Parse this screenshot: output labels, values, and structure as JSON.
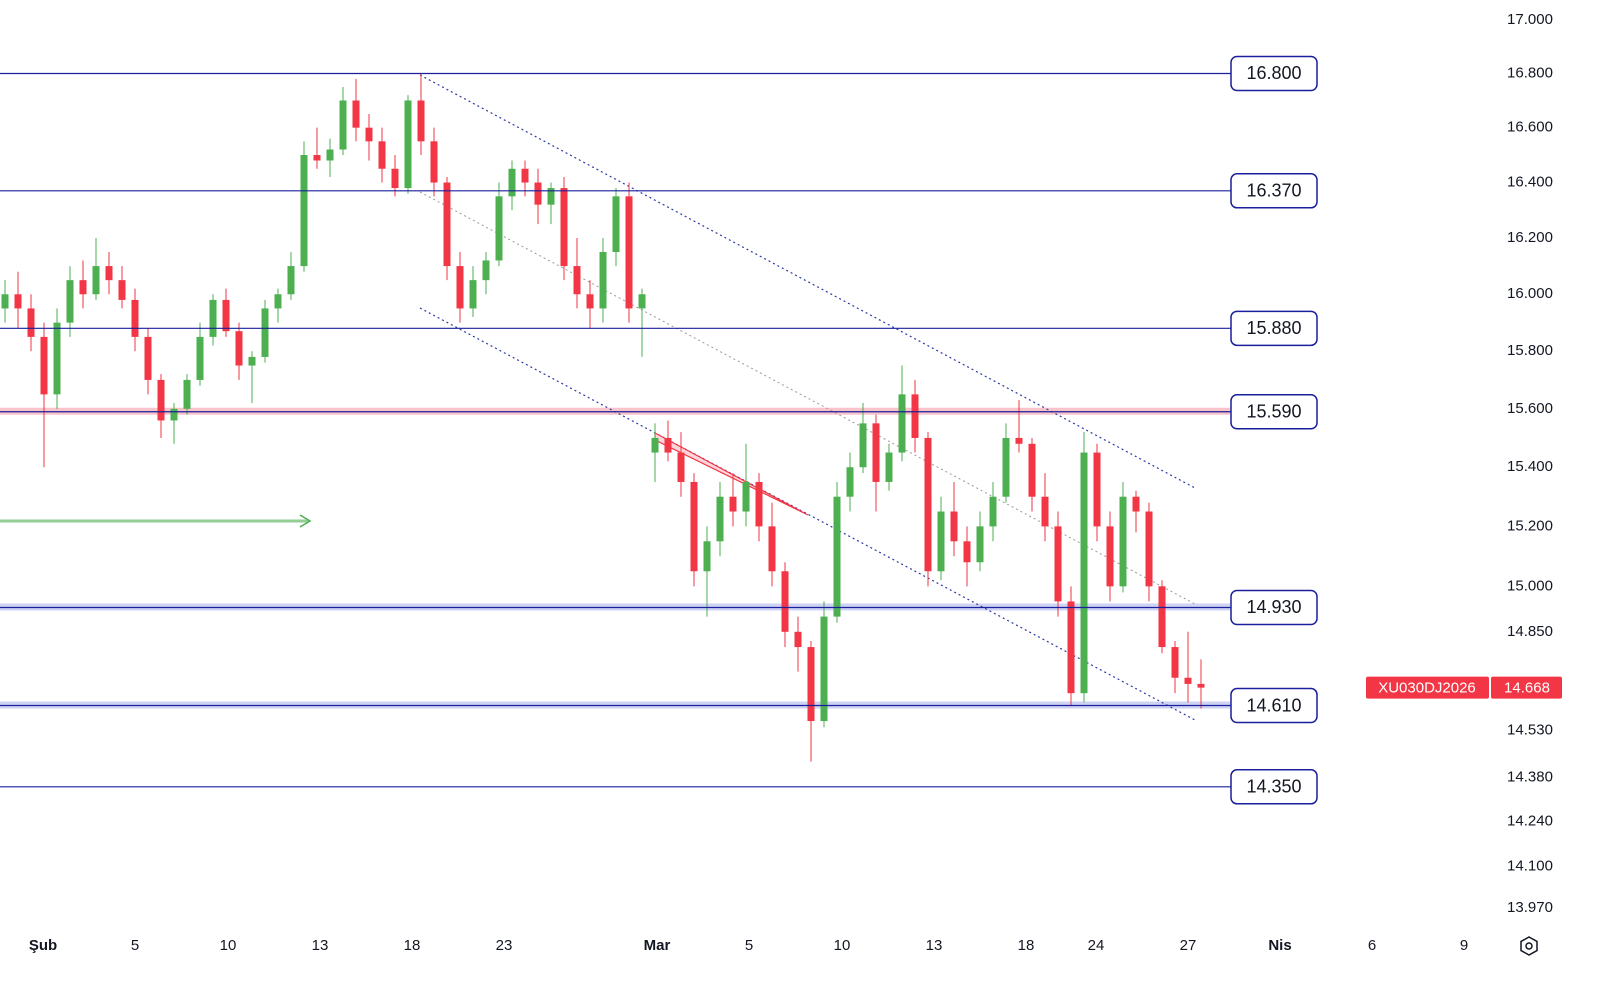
{
  "chart_data": {
    "type": "candlestick",
    "symbol": "XU030DJ2026",
    "last_price": {
      "value": 14668,
      "label": "14.668"
    },
    "up_color": "#4caf50",
    "down_color": "#f23645",
    "level_color": "#1a1f9c",
    "log_scale": true,
    "ylim": [
      13903,
      17075
    ],
    "yticks": [
      {
        "value": 17000,
        "label": "17.000"
      },
      {
        "value": 16800,
        "label": "16.800"
      },
      {
        "value": 16600,
        "label": "16.600"
      },
      {
        "value": 16400,
        "label": "16.400"
      },
      {
        "value": 16200,
        "label": "16.200"
      },
      {
        "value": 16000,
        "label": "16.000"
      },
      {
        "value": 15800,
        "label": "15.800"
      },
      {
        "value": 15600,
        "label": "15.600"
      },
      {
        "value": 15400,
        "label": "15.400"
      },
      {
        "value": 15200,
        "label": "15.200"
      },
      {
        "value": 15000,
        "label": "15.000"
      },
      {
        "value": 14850,
        "label": "14.850"
      },
      {
        "value": 14530,
        "label": "14.530"
      },
      {
        "value": 14380,
        "label": "14.380"
      },
      {
        "value": 14240,
        "label": "14.240"
      },
      {
        "value": 14100,
        "label": "14.100"
      },
      {
        "value": 13970,
        "label": "13.970"
      }
    ],
    "levels": [
      {
        "value": 16800,
        "label": "16.800"
      },
      {
        "value": 16370,
        "label": "16.370"
      },
      {
        "value": 15880,
        "label": "15.880"
      },
      {
        "value": 15590,
        "label": "15.590"
      },
      {
        "value": 14930,
        "label": "14.930"
      },
      {
        "value": 14610,
        "label": "14.610"
      },
      {
        "value": 14350,
        "label": "14.350"
      }
    ],
    "x_labels": [
      "Şub",
      "5",
      "10",
      "13",
      "18",
      "23",
      "Mar",
      "5",
      "10",
      "13",
      "18",
      "24",
      "27",
      "Nis",
      "6",
      "9"
    ],
    "open": [
      15950,
      16000,
      15950,
      15850,
      15650,
      15900,
      16050,
      16000,
      16100,
      16050,
      15980,
      15850,
      15700,
      15560,
      15600,
      15700,
      15850,
      15980,
      15870,
      15750,
      15780,
      15950,
      16000,
      16100,
      16500,
      16480,
      16520,
      16700,
      16600,
      16550,
      16450,
      16380,
      16700,
      16550,
      16400,
      16100,
      15950,
      16050,
      16120,
      16350,
      16450,
      16400,
      16320,
      16380,
      16100,
      16000,
      15950,
      16150,
      16350,
      15950,
      15450,
      15500,
      15450,
      15350,
      15050,
      15150,
      15300,
      15250,
      15350,
      15200,
      15050,
      14850,
      14800,
      14560,
      14900,
      15300,
      15400,
      15550,
      15350,
      15450,
      15650,
      15500,
      15050,
      15250,
      15150,
      15080,
      15200,
      15300,
      15500,
      15480,
      15300,
      15200,
      14950,
      14650,
      15450,
      15200,
      15000,
      15300,
      15250,
      15000,
      14800,
      14700,
      14680
    ],
    "high": [
      16050,
      16080,
      16000,
      15900,
      15950,
      16100,
      16120,
      16200,
      16150,
      16100,
      16020,
      15880,
      15720,
      15620,
      15720,
      15900,
      16000,
      16020,
      15900,
      15800,
      15980,
      16020,
      16150,
      16550,
      16600,
      16560,
      16750,
      16780,
      16650,
      16600,
      16500,
      16720,
      16800,
      16600,
      16420,
      16150,
      16100,
      16150,
      16400,
      16480,
      16480,
      16450,
      16400,
      16420,
      16200,
      16050,
      16200,
      16380,
      16400,
      16020,
      15550,
      15560,
      15520,
      15380,
      15200,
      15350,
      15380,
      15480,
      15380,
      15280,
      15080,
      14900,
      14820,
      14950,
      15350,
      15450,
      15620,
      15580,
      15480,
      15750,
      15700,
      15520,
      15300,
      15350,
      15200,
      15250,
      15350,
      15550,
      15630,
      15500,
      15380,
      15250,
      15000,
      15520,
      15480,
      15250,
      15350,
      15320,
      15280,
      15020,
      14820,
      14850,
      14760
    ],
    "low": [
      15900,
      15880,
      15800,
      15400,
      15600,
      15850,
      15950,
      15980,
      16000,
      15950,
      15800,
      15650,
      15500,
      15480,
      15580,
      15680,
      15820,
      15850,
      15700,
      15620,
      15760,
      15900,
      15980,
      16080,
      16450,
      16420,
      16500,
      16550,
      16480,
      16400,
      16350,
      16360,
      16500,
      16350,
      16050,
      15900,
      15920,
      16000,
      16100,
      16300,
      16350,
      16250,
      16250,
      16050,
      15950,
      15880,
      15900,
      16100,
      15900,
      15780,
      15350,
      15420,
      15300,
      15000,
      14900,
      15100,
      15200,
      15200,
      15150,
      15000,
      14800,
      14720,
      14430,
      14540,
      14880,
      15250,
      15380,
      15250,
      15320,
      15420,
      15450,
      15000,
      15020,
      15100,
      15000,
      15050,
      15150,
      15280,
      15450,
      15250,
      15150,
      14900,
      14610,
      14620,
      15150,
      14950,
      14980,
      15180,
      14950,
      14780,
      14650,
      14620,
      14600
    ],
    "close": [
      16000,
      15950,
      15850,
      15650,
      15900,
      16050,
      16000,
      16100,
      16050,
      15980,
      15850,
      15700,
      15560,
      15600,
      15700,
      15850,
      15980,
      15870,
      15750,
      15780,
      15950,
      16000,
      16100,
      16500,
      16480,
      16520,
      16700,
      16600,
      16550,
      16450,
      16380,
      16700,
      16550,
      16400,
      16100,
      15950,
      16050,
      16120,
      16350,
      16450,
      16400,
      16320,
      16380,
      16100,
      16000,
      15950,
      16150,
      16350,
      15950,
      16000,
      15500,
      15450,
      15350,
      15050,
      15150,
      15300,
      15250,
      15350,
      15200,
      15050,
      14850,
      14800,
      14560,
      14900,
      15300,
      15400,
      15550,
      15350,
      15450,
      15650,
      15500,
      15050,
      15250,
      15150,
      15080,
      15200,
      15300,
      15500,
      15480,
      15300,
      15200,
      14950,
      14650,
      15450,
      15200,
      15000,
      15300,
      15250,
      15000,
      14800,
      14700,
      14680,
      14668
    ]
  }
}
